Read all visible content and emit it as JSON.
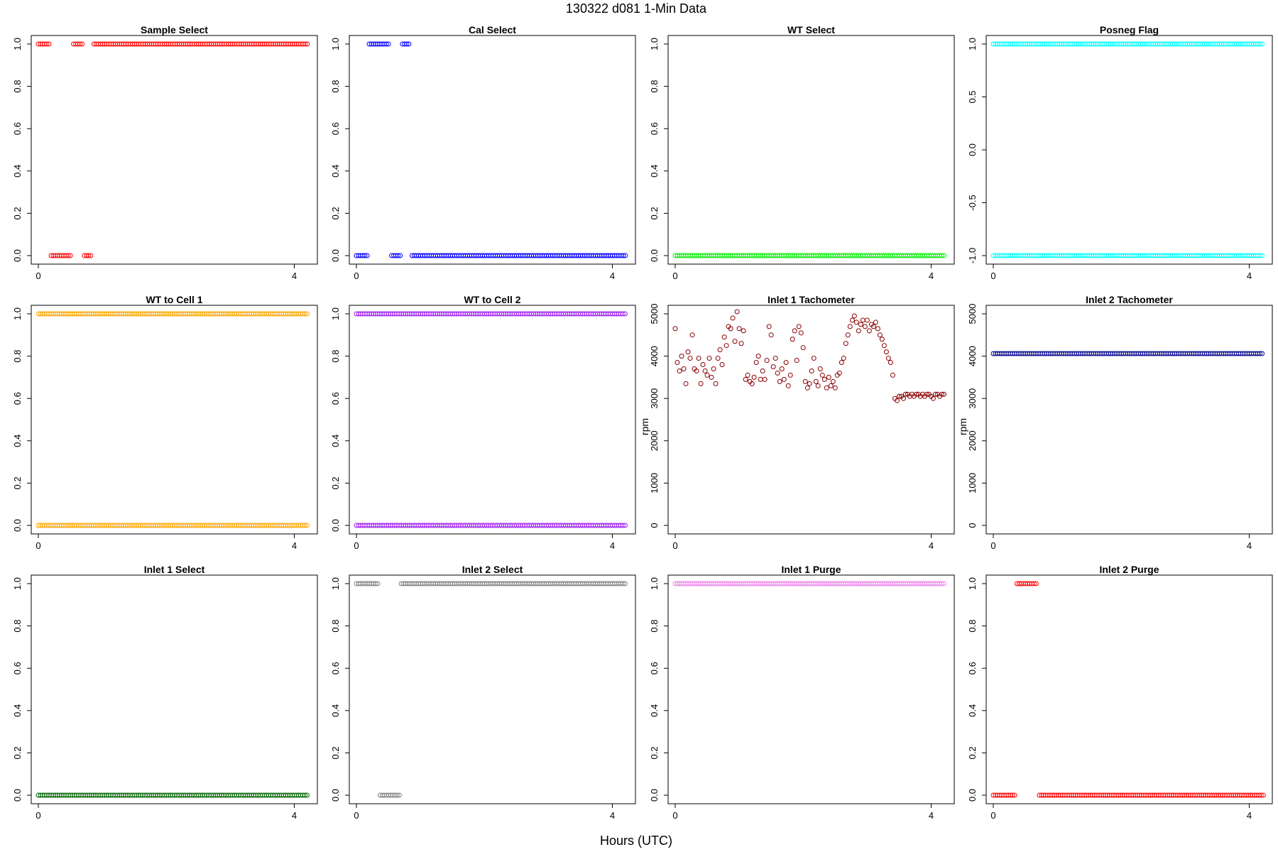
{
  "figure": {
    "title": "130322   d081   1-Min Data",
    "xlabel": "Hours (UTC)"
  },
  "chart_data": [
    {
      "type": "scatter",
      "title": "Sample Select",
      "ylabel": "",
      "color": "#ff0000",
      "xlim": [
        0,
        4.25
      ],
      "ylim": [
        0,
        1
      ],
      "x_ticks": [
        0,
        4
      ],
      "y_ticks": [
        0.0,
        0.2,
        0.4,
        0.6,
        0.8,
        1.0
      ],
      "x_tick_labels": [
        "0",
        "4"
      ],
      "y_tick_labels": [
        "0.0",
        "0.2",
        "0.4",
        "0.6",
        "0.8",
        "1.0"
      ],
      "segments": [
        {
          "y": 1,
          "x_start": 0.0,
          "x_end": 0.18
        },
        {
          "y": 0,
          "x_start": 0.2,
          "x_end": 0.53
        },
        {
          "y": 1,
          "x_start": 0.55,
          "x_end": 0.7
        },
        {
          "y": 0,
          "x_start": 0.72,
          "x_end": 0.85
        },
        {
          "y": 1,
          "x_start": 0.87,
          "x_end": 4.23
        }
      ]
    },
    {
      "type": "scatter",
      "title": "Cal Select",
      "ylabel": "",
      "color": "#0000ff",
      "xlim": [
        0,
        4.25
      ],
      "ylim": [
        0,
        1
      ],
      "x_ticks": [
        0,
        4
      ],
      "y_ticks": [
        0.0,
        0.2,
        0.4,
        0.6,
        0.8,
        1.0
      ],
      "x_tick_labels": [
        "0",
        "4"
      ],
      "y_tick_labels": [
        "0.0",
        "0.2",
        "0.4",
        "0.6",
        "0.8",
        "1.0"
      ],
      "segments": [
        {
          "y": 0,
          "x_start": 0.0,
          "x_end": 0.18
        },
        {
          "y": 1,
          "x_start": 0.2,
          "x_end": 0.53
        },
        {
          "y": 0,
          "x_start": 0.55,
          "x_end": 0.7
        },
        {
          "y": 1,
          "x_start": 0.72,
          "x_end": 0.85
        },
        {
          "y": 0,
          "x_start": 0.87,
          "x_end": 4.23
        }
      ]
    },
    {
      "type": "scatter",
      "title": "WT Select",
      "ylabel": "",
      "color": "#00ee00",
      "xlim": [
        0,
        4.25
      ],
      "ylim": [
        0,
        1
      ],
      "x_ticks": [
        0,
        4
      ],
      "y_ticks": [
        0.0,
        0.2,
        0.4,
        0.6,
        0.8,
        1.0
      ],
      "x_tick_labels": [
        "0",
        "4"
      ],
      "y_tick_labels": [
        "0.0",
        "0.2",
        "0.4",
        "0.6",
        "0.8",
        "1.0"
      ],
      "segments": [
        {
          "y": 0,
          "x_start": 0.0,
          "x_end": 4.23
        }
      ]
    },
    {
      "type": "scatter",
      "title": "Posneg Flag",
      "ylabel": "",
      "color": "#00ffff",
      "xlim": [
        0,
        4.25
      ],
      "ylim": [
        -1,
        1
      ],
      "x_ticks": [
        0,
        4
      ],
      "y_ticks": [
        -1.0,
        -0.5,
        0.0,
        0.5,
        1.0
      ],
      "x_tick_labels": [
        "0",
        "4"
      ],
      "y_tick_labels": [
        "-1.0",
        "-0.5",
        "0.0",
        "0.5",
        "1.0"
      ],
      "segments": [
        {
          "y": 1,
          "x_start": 0.0,
          "x_end": 4.23
        },
        {
          "y": -1,
          "x_start": 0.0,
          "x_end": 4.23
        }
      ]
    },
    {
      "type": "scatter",
      "title": "WT to Cell 1",
      "ylabel": "",
      "color": "#ffa500",
      "xlim": [
        0,
        4.25
      ],
      "ylim": [
        0,
        1
      ],
      "x_ticks": [
        0,
        4
      ],
      "y_ticks": [
        0.0,
        0.2,
        0.4,
        0.6,
        0.8,
        1.0
      ],
      "x_tick_labels": [
        "0",
        "4"
      ],
      "y_tick_labels": [
        "0.0",
        "0.2",
        "0.4",
        "0.6",
        "0.8",
        "1.0"
      ],
      "segments": [
        {
          "y": 1,
          "x_start": 0.0,
          "x_end": 4.23
        },
        {
          "y": 0,
          "x_start": 0.0,
          "x_end": 4.23
        }
      ]
    },
    {
      "type": "scatter",
      "title": "WT to Cell 2",
      "ylabel": "",
      "color": "#a020f0",
      "xlim": [
        0,
        4.25
      ],
      "ylim": [
        0,
        1
      ],
      "x_ticks": [
        0,
        4
      ],
      "y_ticks": [
        0.0,
        0.2,
        0.4,
        0.6,
        0.8,
        1.0
      ],
      "x_tick_labels": [
        "0",
        "4"
      ],
      "y_tick_labels": [
        "0.0",
        "0.2",
        "0.4",
        "0.6",
        "0.8",
        "1.0"
      ],
      "segments": [
        {
          "y": 1,
          "x_start": 0.0,
          "x_end": 4.23
        },
        {
          "y": 0,
          "x_start": 0.0,
          "x_end": 4.23
        }
      ]
    },
    {
      "type": "scatter",
      "title": "Inlet 1 Tachometer",
      "ylabel": "rpm",
      "color": "#8b0000",
      "xlim": [
        0,
        4.25
      ],
      "ylim": [
        0,
        5000
      ],
      "x_ticks": [
        0,
        4
      ],
      "y_ticks": [
        0,
        1000,
        2000,
        3000,
        4000,
        5000
      ],
      "x_tick_labels": [
        "0",
        "4"
      ],
      "y_tick_labels": [
        "0",
        "1000",
        "2000",
        "3000",
        "4000",
        "5000"
      ],
      "x": [
        0.0,
        0.033,
        0.067,
        0.1,
        0.133,
        0.167,
        0.2,
        0.233,
        0.267,
        0.3,
        0.333,
        0.367,
        0.4,
        0.433,
        0.467,
        0.5,
        0.533,
        0.567,
        0.6,
        0.633,
        0.667,
        0.7,
        0.733,
        0.767,
        0.8,
        0.833,
        0.867,
        0.9,
        0.933,
        0.967,
        1.0,
        1.033,
        1.067,
        1.1,
        1.133,
        1.167,
        1.2,
        1.233,
        1.267,
        1.3,
        1.333,
        1.367,
        1.4,
        1.433,
        1.467,
        1.5,
        1.533,
        1.567,
        1.6,
        1.633,
        1.667,
        1.7,
        1.733,
        1.767,
        1.8,
        1.833,
        1.867,
        1.9,
        1.933,
        1.967,
        2.0,
        2.033,
        2.067,
        2.1,
        2.133,
        2.167,
        2.2,
        2.233,
        2.267,
        2.3,
        2.333,
        2.367,
        2.4,
        2.433,
        2.467,
        2.5,
        2.533,
        2.567,
        2.6,
        2.633,
        2.667,
        2.7,
        2.733,
        2.767,
        2.8,
        2.833,
        2.867,
        2.9,
        2.933,
        2.967,
        3.0,
        3.033,
        3.067,
        3.1,
        3.133,
        3.167,
        3.2,
        3.233,
        3.267,
        3.3,
        3.333,
        3.367,
        3.4,
        3.433,
        3.467,
        3.5,
        3.533,
        3.567,
        3.6,
        3.633,
        3.667,
        3.7,
        3.733,
        3.767,
        3.8,
        3.833,
        3.867,
        3.9,
        3.933,
        3.967,
        4.0,
        4.033,
        4.067,
        4.1,
        4.133,
        4.167,
        4.2
      ],
      "y": [
        4650,
        3850,
        3650,
        4000,
        3700,
        3350,
        4100,
        3950,
        4500,
        3700,
        3650,
        3950,
        3350,
        3800,
        3650,
        3550,
        3950,
        3500,
        3700,
        3350,
        3950,
        4150,
        3800,
        4450,
        4250,
        4700,
        4650,
        4900,
        4350,
        5050,
        4650,
        4300,
        4600,
        3450,
        3550,
        3400,
        3350,
        3500,
        3850,
        4000,
        3450,
        3650,
        3450,
        3900,
        4700,
        4500,
        3750,
        3950,
        3600,
        3400,
        3700,
        3450,
        3850,
        3300,
        3550,
        4400,
        4600,
        3900,
        4700,
        4550,
        4200,
        3400,
        3250,
        3350,
        3650,
        3950,
        3400,
        3300,
        3700,
        3550,
        3450,
        3250,
        3500,
        3300,
        3400,
        3250,
        3550,
        3600,
        3850,
        3950,
        4300,
        4500,
        4700,
        4850,
        4950,
        4800,
        4600,
        4750,
        4850,
        4700,
        4850,
        4600,
        4750,
        4700,
        4800,
        4650,
        4500,
        4400,
        4250,
        4100,
        3950,
        3850,
        3550,
        3000,
        2950,
        3050,
        3050,
        3000,
        3100,
        3100,
        3050,
        3100,
        3050,
        3100,
        3100,
        3050,
        3100,
        3050,
        3100,
        3100,
        3050,
        3000,
        3100,
        3100,
        3050,
        3100,
        3100
      ]
    },
    {
      "type": "scatter",
      "title": "Inlet 2 Tachometer",
      "ylabel": "rpm",
      "color": "#00008b",
      "xlim": [
        0,
        4.25
      ],
      "ylim": [
        0,
        5000
      ],
      "x_ticks": [
        0,
        4
      ],
      "y_ticks": [
        0,
        1000,
        2000,
        3000,
        4000,
        5000
      ],
      "x_tick_labels": [
        "0",
        "4"
      ],
      "y_tick_labels": [
        "0",
        "1000",
        "2000",
        "3000",
        "4000",
        "5000"
      ],
      "segments": [
        {
          "y": 4060,
          "x_start": 0.0,
          "x_end": 4.23
        }
      ]
    },
    {
      "type": "scatter",
      "title": "Inlet 1 Select",
      "ylabel": "",
      "color": "#006400",
      "xlim": [
        0,
        4.25
      ],
      "ylim": [
        0,
        1
      ],
      "x_ticks": [
        0,
        4
      ],
      "y_ticks": [
        0.0,
        0.2,
        0.4,
        0.6,
        0.8,
        1.0
      ],
      "x_tick_labels": [
        "0",
        "4"
      ],
      "y_tick_labels": [
        "0.0",
        "0.2",
        "0.4",
        "0.6",
        "0.8",
        "1.0"
      ],
      "segments": [
        {
          "y": 0,
          "x_start": 0.0,
          "x_end": 4.23
        }
      ]
    },
    {
      "type": "scatter",
      "title": "Inlet 2 Select",
      "ylabel": "",
      "color": "#808080",
      "xlim": [
        0,
        4.25
      ],
      "ylim": [
        0,
        1
      ],
      "x_ticks": [
        0,
        4
      ],
      "y_ticks": [
        0.0,
        0.2,
        0.4,
        0.6,
        0.8,
        1.0
      ],
      "x_tick_labels": [
        "0",
        "4"
      ],
      "y_tick_labels": [
        "0.0",
        "0.2",
        "0.4",
        "0.6",
        "0.8",
        "1.0"
      ],
      "segments": [
        {
          "y": 1,
          "x_start": 0.0,
          "x_end": 0.35
        },
        {
          "y": 0,
          "x_start": 0.37,
          "x_end": 0.68
        },
        {
          "y": 1,
          "x_start": 0.7,
          "x_end": 4.23
        }
      ]
    },
    {
      "type": "scatter",
      "title": "Inlet 1 Purge",
      "ylabel": "",
      "color": "#ee82ee",
      "xlim": [
        0,
        4.25
      ],
      "ylim": [
        0,
        1
      ],
      "x_ticks": [
        0,
        4
      ],
      "y_ticks": [
        0.0,
        0.2,
        0.4,
        0.6,
        0.8,
        1.0
      ],
      "x_tick_labels": [
        "0",
        "4"
      ],
      "y_tick_labels": [
        "0.0",
        "0.2",
        "0.4",
        "0.6",
        "0.8",
        "1.0"
      ],
      "segments": [
        {
          "y": 1,
          "x_start": 0.0,
          "x_end": 4.23
        }
      ]
    },
    {
      "type": "scatter",
      "title": "Inlet 2 Purge",
      "ylabel": "",
      "color": "#ff0000",
      "xlim": [
        0,
        4.25
      ],
      "ylim": [
        0,
        1
      ],
      "x_ticks": [
        0,
        4
      ],
      "y_ticks": [
        0.0,
        0.2,
        0.4,
        0.6,
        0.8,
        1.0
      ],
      "x_tick_labels": [
        "0",
        "4"
      ],
      "y_tick_labels": [
        "0.0",
        "0.2",
        "0.4",
        "0.6",
        "0.8",
        "1.0"
      ],
      "segments": [
        {
          "y": 0,
          "x_start": 0.0,
          "x_end": 0.35
        },
        {
          "y": 1,
          "x_start": 0.37,
          "x_end": 0.7
        },
        {
          "y": 0,
          "x_start": 0.72,
          "x_end": 4.23
        }
      ]
    }
  ]
}
